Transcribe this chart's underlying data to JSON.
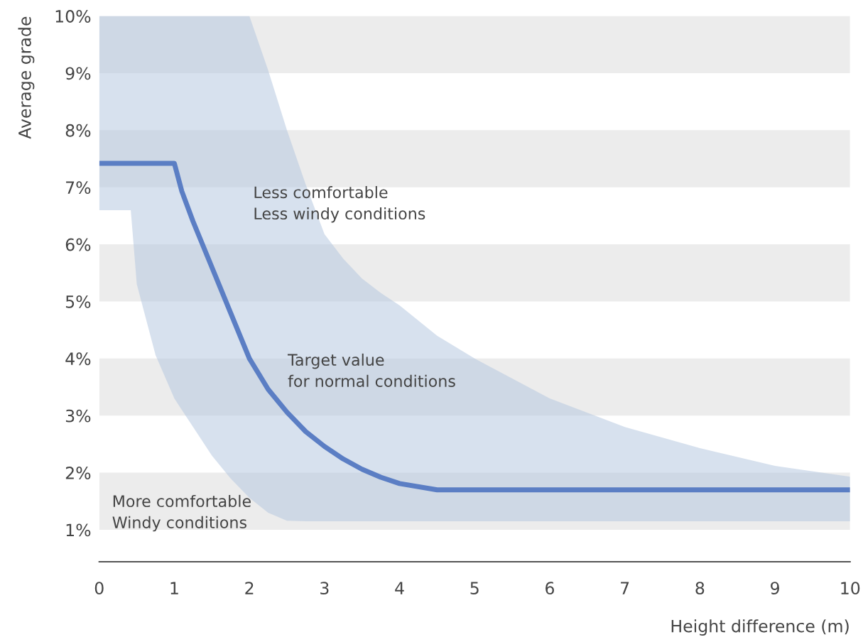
{
  "chart_data": {
    "type": "line",
    "xlabel": "Height difference (m)",
    "ylabel": "Average grade",
    "x": [
      0,
      0.42,
      0.5,
      0.75,
      1,
      1.1,
      1.25,
      1.5,
      1.75,
      2,
      2.25,
      2.5,
      2.75,
      3,
      3.25,
      3.5,
      3.75,
      4,
      4.5,
      5,
      6,
      7,
      8,
      9,
      10
    ],
    "series": [
      {
        "color": "#5b7ec4",
        "values": [
          7.42,
          7.42,
          7.42,
          7.42,
          7.42,
          6.93,
          6.4,
          5.6,
          4.8,
          4.0,
          3.46,
          3.06,
          2.72,
          2.46,
          2.24,
          2.06,
          1.92,
          1.81,
          1.7,
          1.7,
          1.7,
          1.7,
          1.7,
          1.7,
          1.7
        ],
        "lower": [
          6.6,
          6.6,
          5.3,
          4.06,
          3.3,
          3.1,
          2.8,
          2.3,
          1.9,
          1.56,
          1.3,
          1.16,
          1.15,
          1.15,
          1.15,
          1.15,
          1.15,
          1.15,
          1.15,
          1.15,
          1.15,
          1.15,
          1.15,
          1.15,
          1.15
        ],
        "upper": [
          10,
          10,
          10,
          10,
          10,
          10,
          10,
          10,
          10,
          10,
          9.05,
          8.0,
          7.05,
          6.18,
          5.75,
          5.4,
          5.15,
          4.93,
          4.4,
          4.0,
          3.3,
          2.8,
          2.43,
          2.12,
          1.93
        ]
      }
    ],
    "xlim": [
      0,
      10
    ],
    "xticks": [
      0,
      1,
      2,
      3,
      4,
      5,
      6,
      7,
      8,
      9,
      10
    ],
    "ylim": [
      0.44,
      10
    ],
    "yticks": [
      {
        "value": 1,
        "label": "1%"
      },
      {
        "value": 2,
        "label": "2%"
      },
      {
        "value": 3,
        "label": "3%"
      },
      {
        "value": 4,
        "label": "4%"
      },
      {
        "value": 5,
        "label": "5%"
      },
      {
        "value": 6,
        "label": "6%"
      },
      {
        "value": 7,
        "label": "7%"
      },
      {
        "value": 8,
        "label": "8%"
      },
      {
        "value": 9,
        "label": "9%"
      },
      {
        "value": 10,
        "label": "10%"
      }
    ],
    "bands": [
      {
        "axis": "y",
        "from": 1,
        "to": 2,
        "color": "#ececec"
      },
      {
        "axis": "y",
        "from": 3,
        "to": 4,
        "color": "#ececec"
      },
      {
        "axis": "y",
        "from": 5,
        "to": 6,
        "color": "#ececec"
      },
      {
        "axis": "y",
        "from": 7,
        "to": 8,
        "color": "#ececec"
      },
      {
        "axis": "y",
        "from": 9,
        "to": 10,
        "color": "#ececec"
      }
    ],
    "annotations": [
      "Less comfortable\nLess windy conditions",
      "Target value\nfor normal conditions",
      "More comfortable\nWindy conditions"
    ],
    "grid": false,
    "legend": false
  }
}
